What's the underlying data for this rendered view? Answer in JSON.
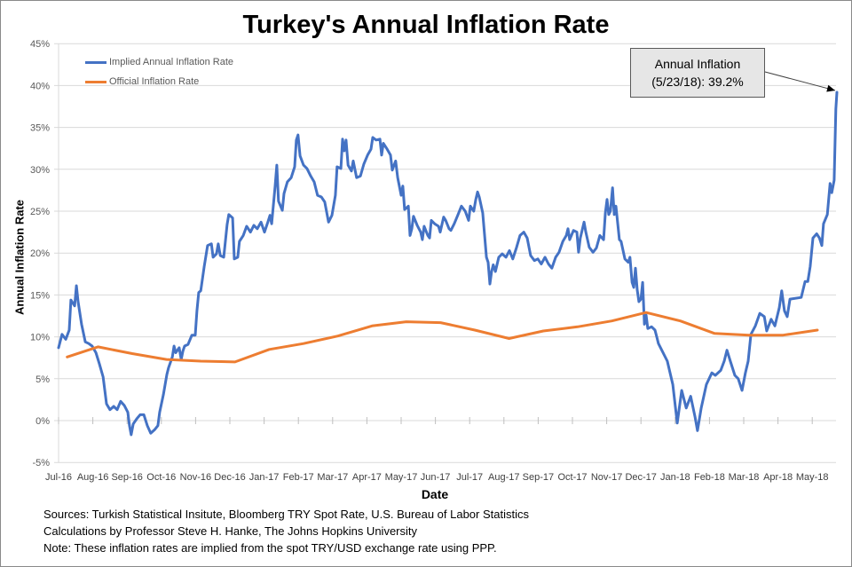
{
  "chart_data": {
    "type": "line",
    "title": "Turkey's Annual Inflation Rate",
    "xlabel": "Date",
    "ylabel": "Annual Inflation Rate",
    "ylim": [
      -5,
      45
    ],
    "yticks": [
      -5,
      0,
      5,
      10,
      15,
      20,
      25,
      30,
      35,
      40,
      45
    ],
    "ytick_labels": [
      "-5%",
      "0%",
      "5%",
      "10%",
      "15%",
      "20%",
      "25%",
      "30%",
      "35%",
      "40%",
      "45%"
    ],
    "x_units": "months since Jul-2016",
    "xlim": [
      0,
      22.75
    ],
    "xtick_labels": [
      "Jul-16",
      "Aug-16",
      "Sep-16",
      "Oct-16",
      "Nov-16",
      "Dec-16",
      "Jan-17",
      "Feb-17",
      "Mar-17",
      "Apr-17",
      "May-17",
      "Jun-17",
      "Jul-17",
      "Aug-17",
      "Sep-17",
      "Oct-17",
      "Nov-17",
      "Dec-17",
      "Jan-18",
      "Feb-18",
      "Mar-18",
      "Apr-18",
      "May-18"
    ],
    "grid": true,
    "legend_position": "top-left",
    "series": [
      {
        "name": "Implied Annual Inflation Rate",
        "color": "#4472c4",
        "points": [
          [
            0.0,
            8.7
          ],
          [
            0.1,
            10.3
          ],
          [
            0.21,
            9.7
          ],
          [
            0.31,
            10.8
          ],
          [
            0.36,
            14.4
          ],
          [
            0.47,
            13.7
          ],
          [
            0.52,
            16.1
          ],
          [
            0.57,
            14.2
          ],
          [
            0.67,
            11.5
          ],
          [
            0.78,
            9.4
          ],
          [
            0.88,
            9.2
          ],
          [
            0.98,
            8.9
          ],
          [
            1.09,
            8.1
          ],
          [
            1.19,
            6.8
          ],
          [
            1.3,
            5.2
          ],
          [
            1.4,
            2.0
          ],
          [
            1.5,
            1.3
          ],
          [
            1.61,
            1.7
          ],
          [
            1.71,
            1.3
          ],
          [
            1.81,
            2.3
          ],
          [
            1.92,
            1.8
          ],
          [
            2.02,
            1.0
          ],
          [
            2.07,
            -0.6
          ],
          [
            2.12,
            -1.7
          ],
          [
            2.18,
            -0.4
          ],
          [
            2.28,
            0.2
          ],
          [
            2.38,
            0.7
          ],
          [
            2.49,
            0.7
          ],
          [
            2.59,
            -0.6
          ],
          [
            2.69,
            -1.5
          ],
          [
            2.8,
            -1.1
          ],
          [
            2.9,
            -0.6
          ],
          [
            2.95,
            1.0
          ],
          [
            3.06,
            3.1
          ],
          [
            3.16,
            5.5
          ],
          [
            3.21,
            6.3
          ],
          [
            3.32,
            7.6
          ],
          [
            3.37,
            8.9
          ],
          [
            3.42,
            8.1
          ],
          [
            3.52,
            8.7
          ],
          [
            3.58,
            7.3
          ],
          [
            3.63,
            8.3
          ],
          [
            3.68,
            8.9
          ],
          [
            3.78,
            9.1
          ],
          [
            3.89,
            10.2
          ],
          [
            3.99,
            10.2
          ],
          [
            4.04,
            13.1
          ],
          [
            4.09,
            15.3
          ],
          [
            4.15,
            15.5
          ],
          [
            4.25,
            18.4
          ],
          [
            4.35,
            20.9
          ],
          [
            4.46,
            21.1
          ],
          [
            4.51,
            19.5
          ],
          [
            4.61,
            19.9
          ],
          [
            4.66,
            21.1
          ],
          [
            4.72,
            19.7
          ],
          [
            4.82,
            19.5
          ],
          [
            4.92,
            23.4
          ],
          [
            4.97,
            24.6
          ],
          [
            5.08,
            24.2
          ],
          [
            5.13,
            19.3
          ],
          [
            5.23,
            19.5
          ],
          [
            5.28,
            21.4
          ],
          [
            5.39,
            22.1
          ],
          [
            5.49,
            23.2
          ],
          [
            5.6,
            22.5
          ],
          [
            5.7,
            23.3
          ],
          [
            5.8,
            22.9
          ],
          [
            5.91,
            23.7
          ],
          [
            6.01,
            22.5
          ],
          [
            6.11,
            23.7
          ],
          [
            6.17,
            24.5
          ],
          [
            6.22,
            23.5
          ],
          [
            6.32,
            28.0
          ],
          [
            6.37,
            30.5
          ],
          [
            6.42,
            26.2
          ],
          [
            6.53,
            25.1
          ],
          [
            6.58,
            27.1
          ],
          [
            6.68,
            28.5
          ],
          [
            6.79,
            29.0
          ],
          [
            6.89,
            30.3
          ],
          [
            6.94,
            33.5
          ],
          [
            6.99,
            34.1
          ],
          [
            7.05,
            31.6
          ],
          [
            7.15,
            30.5
          ],
          [
            7.25,
            30.1
          ],
          [
            7.36,
            29.2
          ],
          [
            7.46,
            28.5
          ],
          [
            7.56,
            26.9
          ],
          [
            7.67,
            26.7
          ],
          [
            7.77,
            26.1
          ],
          [
            7.88,
            23.7
          ],
          [
            7.98,
            24.5
          ],
          [
            8.08,
            26.9
          ],
          [
            8.13,
            30.3
          ],
          [
            8.24,
            30.1
          ],
          [
            8.29,
            33.6
          ],
          [
            8.34,
            32.2
          ],
          [
            8.39,
            33.5
          ],
          [
            8.45,
            30.5
          ],
          [
            8.55,
            29.8
          ],
          [
            8.6,
            31.0
          ],
          [
            8.7,
            29.0
          ],
          [
            8.81,
            29.2
          ],
          [
            8.91,
            30.6
          ],
          [
            9.02,
            31.7
          ],
          [
            9.12,
            32.4
          ],
          [
            9.17,
            33.8
          ],
          [
            9.27,
            33.5
          ],
          [
            9.38,
            33.6
          ],
          [
            9.43,
            31.7
          ],
          [
            9.48,
            33.1
          ],
          [
            9.59,
            32.4
          ],
          [
            9.69,
            31.7
          ],
          [
            9.74,
            29.9
          ],
          [
            9.84,
            31.0
          ],
          [
            9.9,
            29.0
          ],
          [
            10.0,
            26.9
          ],
          [
            10.05,
            28.0
          ],
          [
            10.1,
            25.2
          ],
          [
            10.21,
            25.6
          ],
          [
            10.26,
            22.1
          ],
          [
            10.31,
            22.9
          ],
          [
            10.36,
            24.4
          ],
          [
            10.47,
            23.3
          ],
          [
            10.57,
            22.5
          ],
          [
            10.62,
            21.6
          ],
          [
            10.67,
            23.2
          ],
          [
            10.78,
            22.1
          ],
          [
            10.83,
            21.8
          ],
          [
            10.88,
            23.9
          ],
          [
            10.98,
            23.5
          ],
          [
            11.09,
            23.2
          ],
          [
            11.14,
            22.5
          ],
          [
            11.24,
            24.3
          ],
          [
            11.3,
            23.9
          ],
          [
            11.4,
            22.9
          ],
          [
            11.45,
            22.7
          ],
          [
            11.55,
            23.5
          ],
          [
            11.66,
            24.6
          ],
          [
            11.76,
            25.6
          ],
          [
            11.87,
            25.0
          ],
          [
            11.97,
            23.9
          ],
          [
            12.02,
            25.6
          ],
          [
            12.12,
            25.0
          ],
          [
            12.18,
            26.4
          ],
          [
            12.23,
            27.3
          ],
          [
            12.28,
            26.7
          ],
          [
            12.38,
            24.8
          ],
          [
            12.49,
            19.5
          ],
          [
            12.54,
            18.9
          ],
          [
            12.59,
            16.3
          ],
          [
            12.64,
            17.8
          ],
          [
            12.69,
            18.6
          ],
          [
            12.75,
            17.8
          ],
          [
            12.85,
            19.5
          ],
          [
            12.95,
            19.9
          ],
          [
            13.06,
            19.5
          ],
          [
            13.16,
            20.3
          ],
          [
            13.26,
            19.3
          ],
          [
            13.37,
            20.7
          ],
          [
            13.47,
            22.1
          ],
          [
            13.58,
            22.5
          ],
          [
            13.68,
            21.8
          ],
          [
            13.78,
            19.7
          ],
          [
            13.89,
            19.1
          ],
          [
            13.99,
            19.3
          ],
          [
            14.09,
            18.7
          ],
          [
            14.2,
            19.5
          ],
          [
            14.3,
            18.7
          ],
          [
            14.4,
            18.2
          ],
          [
            14.51,
            19.5
          ],
          [
            14.61,
            20.1
          ],
          [
            14.72,
            21.4
          ],
          [
            14.82,
            22.1
          ],
          [
            14.87,
            22.9
          ],
          [
            14.92,
            21.6
          ],
          [
            15.03,
            22.7
          ],
          [
            15.13,
            22.5
          ],
          [
            15.18,
            20.1
          ],
          [
            15.23,
            21.8
          ],
          [
            15.34,
            23.7
          ],
          [
            15.39,
            22.5
          ],
          [
            15.49,
            20.7
          ],
          [
            15.6,
            20.1
          ],
          [
            15.7,
            20.6
          ],
          [
            15.8,
            22.1
          ],
          [
            15.91,
            21.6
          ],
          [
            15.96,
            24.8
          ],
          [
            16.01,
            26.4
          ],
          [
            16.06,
            24.6
          ],
          [
            16.11,
            25.0
          ],
          [
            16.17,
            27.8
          ],
          [
            16.22,
            24.6
          ],
          [
            16.27,
            25.6
          ],
          [
            16.37,
            21.6
          ],
          [
            16.42,
            21.4
          ],
          [
            16.53,
            19.3
          ],
          [
            16.63,
            18.9
          ],
          [
            16.68,
            19.5
          ],
          [
            16.74,
            16.5
          ],
          [
            16.79,
            15.9
          ],
          [
            16.84,
            18.2
          ],
          [
            16.89,
            15.6
          ],
          [
            16.94,
            14.2
          ],
          [
            17.0,
            14.5
          ],
          [
            17.05,
            16.5
          ],
          [
            17.1,
            11.5
          ],
          [
            17.15,
            12.6
          ],
          [
            17.2,
            11.0
          ],
          [
            17.31,
            11.2
          ],
          [
            17.41,
            10.8
          ],
          [
            17.46,
            10.0
          ],
          [
            17.51,
            9.2
          ],
          [
            17.77,
            7.1
          ],
          [
            17.93,
            4.3
          ],
          [
            18.06,
            -0.3
          ],
          [
            18.19,
            3.6
          ],
          [
            18.32,
            1.5
          ],
          [
            18.45,
            2.9
          ],
          [
            18.58,
            0.4
          ],
          [
            18.65,
            -1.2
          ],
          [
            18.76,
            1.5
          ],
          [
            18.91,
            4.3
          ],
          [
            19.07,
            5.7
          ],
          [
            19.17,
            5.4
          ],
          [
            19.33,
            6.0
          ],
          [
            19.43,
            7.1
          ],
          [
            19.51,
            8.4
          ],
          [
            19.61,
            7.1
          ],
          [
            19.74,
            5.4
          ],
          [
            19.84,
            5.0
          ],
          [
            19.95,
            3.6
          ],
          [
            20.05,
            5.7
          ],
          [
            20.13,
            7.1
          ],
          [
            20.21,
            10.3
          ],
          [
            20.34,
            11.3
          ],
          [
            20.47,
            12.8
          ],
          [
            20.6,
            12.4
          ],
          [
            20.67,
            10.7
          ],
          [
            20.8,
            12.1
          ],
          [
            20.91,
            11.3
          ],
          [
            21.04,
            13.5
          ],
          [
            21.11,
            15.5
          ],
          [
            21.19,
            13.1
          ],
          [
            21.27,
            12.4
          ],
          [
            21.35,
            14.5
          ],
          [
            21.68,
            14.7
          ],
          [
            21.79,
            16.6
          ],
          [
            21.87,
            16.6
          ],
          [
            21.94,
            18.4
          ],
          [
            22.02,
            21.8
          ],
          [
            22.13,
            22.3
          ],
          [
            22.21,
            21.8
          ],
          [
            22.28,
            20.9
          ],
          [
            22.33,
            23.5
          ],
          [
            22.44,
            24.6
          ],
          [
            22.52,
            28.3
          ],
          [
            22.57,
            27.2
          ],
          [
            22.64,
            28.7
          ],
          [
            22.69,
            37.2
          ],
          [
            22.72,
            39.2
          ]
        ]
      },
      {
        "name": "Official Inflation Rate",
        "color": "#ed7d31",
        "points": [
          [
            0.25,
            7.6
          ],
          [
            1.15,
            8.8
          ],
          [
            2.15,
            8.0
          ],
          [
            3.15,
            7.3
          ],
          [
            4.15,
            7.1
          ],
          [
            5.15,
            7.0
          ],
          [
            6.15,
            8.5
          ],
          [
            7.15,
            9.2
          ],
          [
            8.15,
            10.1
          ],
          [
            9.15,
            11.3
          ],
          [
            10.15,
            11.8
          ],
          [
            11.15,
            11.7
          ],
          [
            12.15,
            10.8
          ],
          [
            13.15,
            9.8
          ],
          [
            14.15,
            10.7
          ],
          [
            15.15,
            11.2
          ],
          [
            16.15,
            11.9
          ],
          [
            17.15,
            12.9
          ],
          [
            18.15,
            11.9
          ],
          [
            19.15,
            10.4
          ],
          [
            20.15,
            10.2
          ],
          [
            21.15,
            10.2
          ],
          [
            22.15,
            10.8
          ]
        ]
      }
    ],
    "annotation": {
      "line1": "Annual Inflation",
      "line2": "(5/23/18): 39.2%",
      "target": [
        22.72,
        39.2
      ]
    }
  },
  "notes": {
    "line1": "Sources: Turkish Statistical Insitute, Bloomberg TRY Spot Rate, U.S. Bureau of Labor Statistics",
    "line2": "Calculations by Professor Steve H. Hanke, The Johns Hopkins University",
    "line3": "Note: These inflation rates are implied from the spot TRY/USD exchange rate using PPP."
  },
  "colors": {
    "gridline": "#d9d9d9",
    "annotation_fill": "#e6e6e6"
  }
}
